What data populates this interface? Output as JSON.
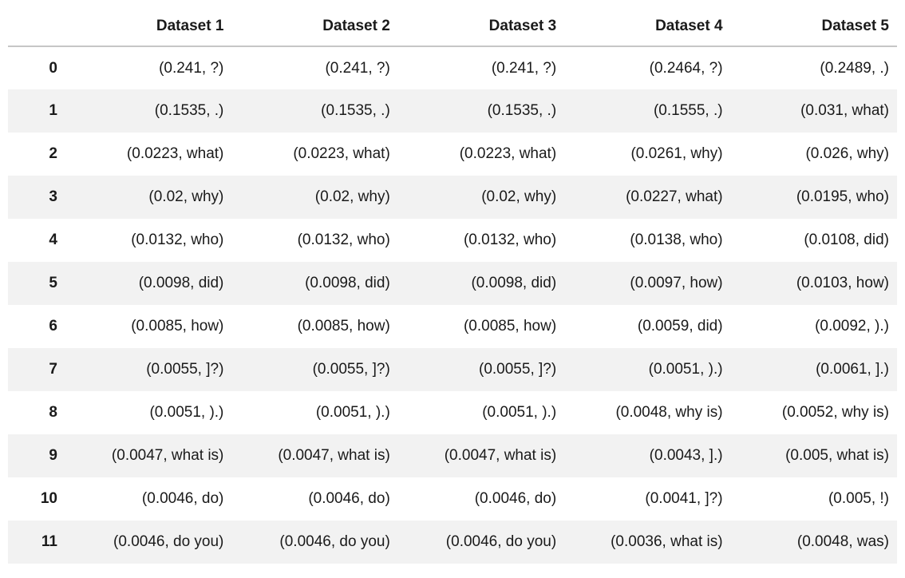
{
  "theme": {
    "background_color": "#ffffff",
    "stripe_color": "#f2f2f2",
    "header_border_color": "#c6c6c6",
    "text_color": "#1a1a1a"
  },
  "chart_data": {
    "type": "table",
    "corner_label": "",
    "columns": [
      "Dataset 1",
      "Dataset 2",
      "Dataset 3",
      "Dataset 4",
      "Dataset 5"
    ],
    "index": [
      "0",
      "1",
      "2",
      "3",
      "4",
      "5",
      "6",
      "7",
      "8",
      "9",
      "10",
      "11"
    ],
    "rows": [
      [
        "(0.241, ?)",
        "(0.241, ?)",
        "(0.241, ?)",
        "(0.2464, ?)",
        "(0.2489, .)"
      ],
      [
        "(0.1535, .)",
        "(0.1535, .)",
        "(0.1535, .)",
        "(0.1555, .)",
        "(0.031, what)"
      ],
      [
        "(0.0223, what)",
        "(0.0223, what)",
        "(0.0223, what)",
        "(0.0261, why)",
        "(0.026, why)"
      ],
      [
        "(0.02, why)",
        "(0.02, why)",
        "(0.02, why)",
        "(0.0227, what)",
        "(0.0195, who)"
      ],
      [
        "(0.0132, who)",
        "(0.0132, who)",
        "(0.0132, who)",
        "(0.0138, who)",
        "(0.0108, did)"
      ],
      [
        "(0.0098, did)",
        "(0.0098, did)",
        "(0.0098, did)",
        "(0.0097, how)",
        "(0.0103, how)"
      ],
      [
        "(0.0085, how)",
        "(0.0085, how)",
        "(0.0085, how)",
        "(0.0059, did)",
        "(0.0092, ).)"
      ],
      [
        "(0.0055, ]?)",
        "(0.0055, ]?)",
        "(0.0055, ]?)",
        "(0.0051, ).)",
        "(0.0061, ].)"
      ],
      [
        "(0.0051, ).)",
        "(0.0051, ).)",
        "(0.0051, ).)",
        "(0.0048, why is)",
        "(0.0052, why is)"
      ],
      [
        "(0.0047, what is)",
        "(0.0047, what is)",
        "(0.0047, what is)",
        "(0.0043, ].)",
        "(0.005, what is)"
      ],
      [
        "(0.0046, do)",
        "(0.0046, do)",
        "(0.0046, do)",
        "(0.0041, ]?)",
        "(0.005, !)"
      ],
      [
        "(0.0046, do you)",
        "(0.0046, do you)",
        "(0.0046, do you)",
        "(0.0036, what is)",
        "(0.0048, was)"
      ]
    ]
  }
}
